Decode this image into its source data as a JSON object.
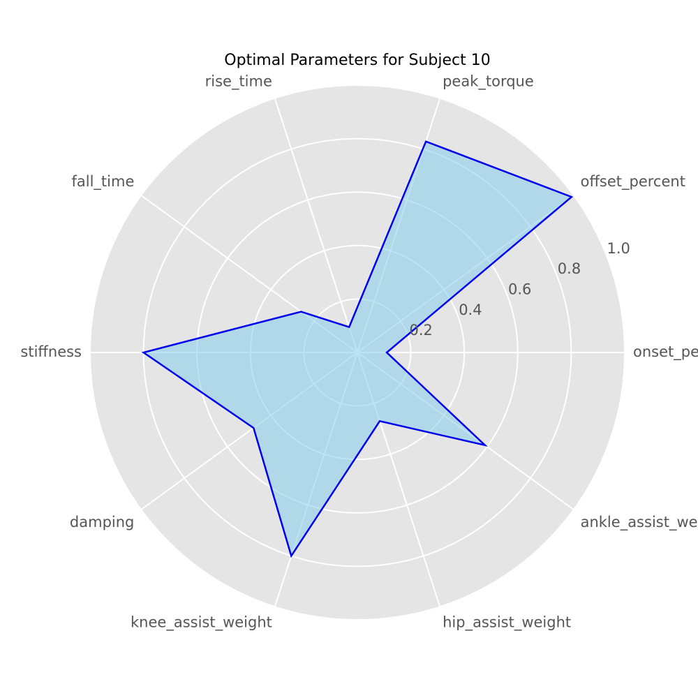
{
  "chart_data": {
    "type": "radar",
    "title": "Optimal Parameters for Subject 10",
    "axes": [
      "onset_percent",
      "offset_percent",
      "peak_torque",
      "rise_time",
      "fall_time",
      "stiffness",
      "damping",
      "knee_assist_weight",
      "hip_assist_weight",
      "ankle_assist_weight"
    ],
    "values": [
      0.11,
      0.99,
      0.83,
      0.1,
      0.26,
      0.8,
      0.48,
      0.8,
      0.27,
      0.59
    ],
    "rlim": [
      0,
      1.0
    ],
    "r_ticks": [
      0.2,
      0.4,
      0.6,
      0.8,
      1.0
    ],
    "r_tick_labels": [
      "0.2",
      "0.4",
      "0.6",
      "0.8",
      "1.0"
    ],
    "grid": true,
    "colors": {
      "line": "#0000ee",
      "fill": "#87ceeb",
      "background": "#e5e5e5",
      "grid": "#ffffff"
    }
  }
}
